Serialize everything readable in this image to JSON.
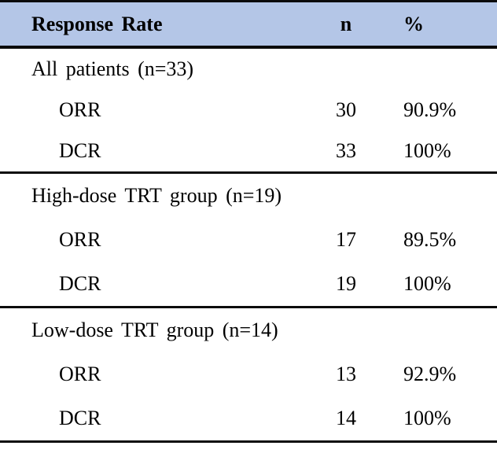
{
  "table": {
    "title_note": "Response rate summary table",
    "header_bg": "#B4C6E7",
    "rule_color": "#0B0B0B",
    "header": {
      "col1": "Response Rate",
      "col2": "n",
      "col3": "%"
    },
    "sections": [
      {
        "label": "All patients (n=33)",
        "rows": [
          {
            "name": "ORR",
            "n": "30",
            "pct": "90.9%"
          },
          {
            "name": "DCR",
            "n": "33",
            "pct": "100%"
          }
        ]
      },
      {
        "label": "High-dose TRT group (n=19)",
        "rows": [
          {
            "name": "ORR",
            "n": "17",
            "pct": "89.5%"
          },
          {
            "name": "DCR",
            "n": "19",
            "pct": "100%"
          }
        ]
      },
      {
        "label": "Low-dose TRT group (n=14)",
        "rows": [
          {
            "name": "ORR",
            "n": "13",
            "pct": "92.9%"
          },
          {
            "name": "DCR",
            "n": "14",
            "pct": "100%"
          }
        ]
      }
    ]
  }
}
